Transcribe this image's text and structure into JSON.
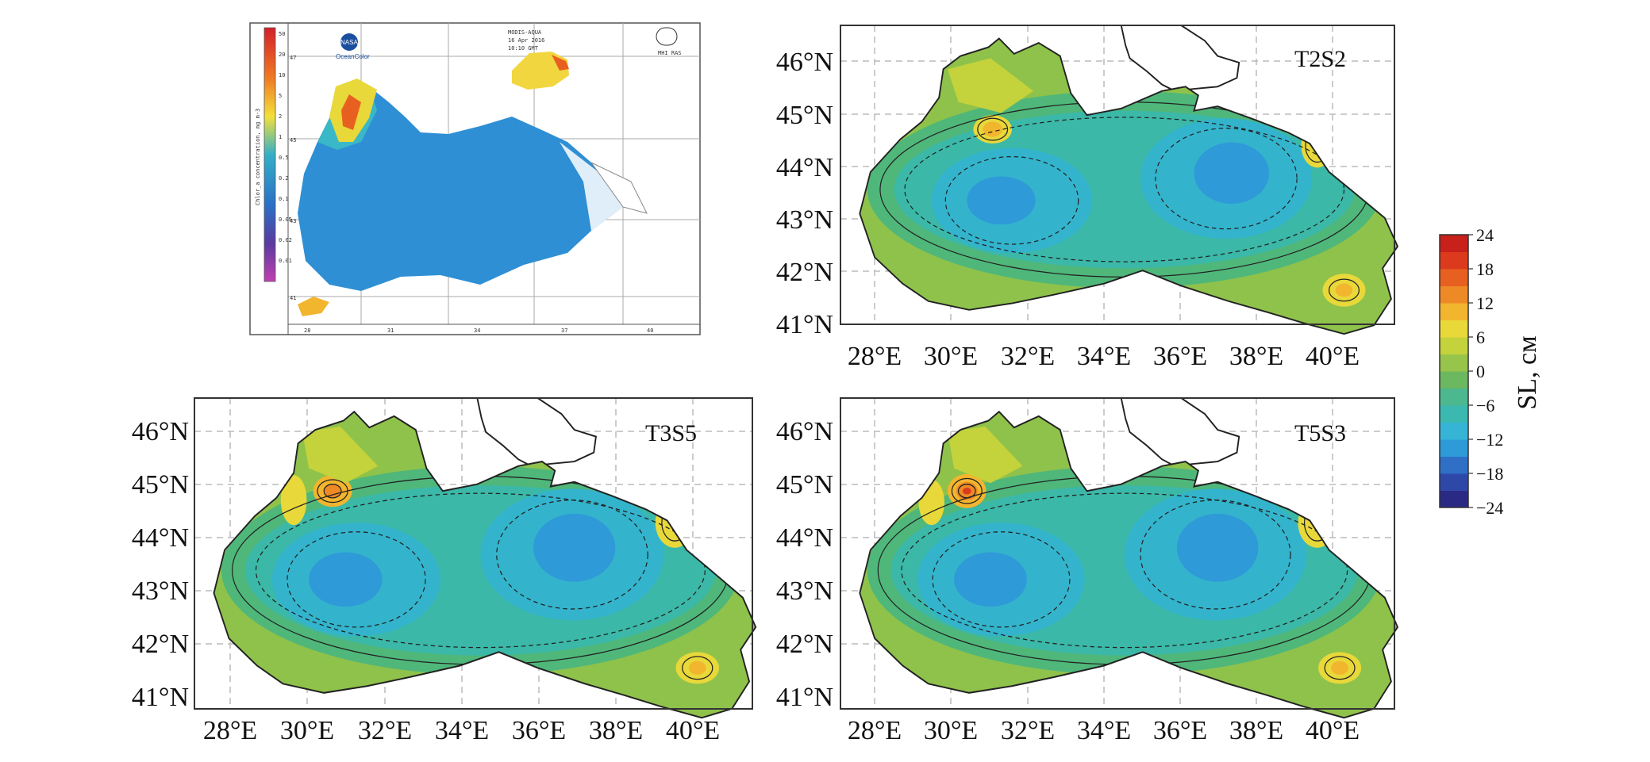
{
  "figure": {
    "colorbar": {
      "title": "SL, см",
      "ticks": [
        "24",
        "18",
        "12",
        "6",
        "0",
        "−6",
        "−12",
        "−18",
        "−24"
      ],
      "colors": [
        "#2a2a85",
        "#2e48a8",
        "#2f6fc6",
        "#2f9ad8",
        "#35b4d6",
        "#3bb8b0",
        "#4cb890",
        "#6bb861",
        "#97c44a",
        "#c4d23c",
        "#e8d83a",
        "#f2b52e",
        "#ee8a26",
        "#e8601f",
        "#dc3a1c",
        "#c8201a"
      ]
    },
    "satellite_inset": {
      "top_text": [
        "MODIS-AQUA",
        "16 Apr 2016",
        "10:10 GMT"
      ],
      "logo_left": "NASA",
      "logo_left_caption": "OceanColor",
      "logo_right_caption": "MHI RAS",
      "colorbar_label": "Chlor_a concentration, mg m-3",
      "colorbar_ticks": [
        "50",
        "20",
        "10",
        "5",
        "2",
        "1",
        "0.5",
        "0.2",
        "0.1",
        "0.05",
        "0.02",
        "0.01"
      ],
      "lat_ticks": [
        "47",
        "45",
        "43",
        "41"
      ],
      "lon_ticks": [
        "28",
        "31",
        "34",
        "37",
        "40"
      ]
    },
    "panels": [
      {
        "label": "T2S2",
        "lat_ticks": [
          "46°N",
          "45°N",
          "44°N",
          "43°N",
          "42°N",
          "41°N"
        ],
        "lon_ticks": [
          "28°E",
          "30°E",
          "32°E",
          "34°E",
          "36°E",
          "38°E",
          "40°E"
        ]
      },
      {
        "label": "T3S5",
        "lat_ticks": [
          "46°N",
          "45°N",
          "44°N",
          "43°N",
          "42°N",
          "41°N"
        ],
        "lon_ticks": [
          "28°E",
          "30°E",
          "32°E",
          "34°E",
          "36°E",
          "38°E",
          "40°E"
        ]
      },
      {
        "label": "T5S3",
        "lat_ticks": [
          "46°N",
          "45°N",
          "44°N",
          "43°N",
          "42°N",
          "41°N"
        ],
        "lon_ticks": [
          "28°E",
          "30°E",
          "32°E",
          "34°E",
          "36°E",
          "38°E",
          "40°E"
        ]
      }
    ]
  }
}
